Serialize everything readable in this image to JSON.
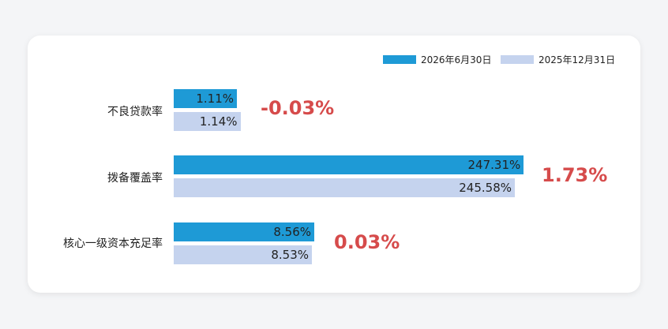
{
  "colors": {
    "series_2026": "#1e9ad6",
    "series_2025": "#c5d3ee",
    "delta": "#d64b4b"
  },
  "chart_data": {
    "type": "bar",
    "orientation": "horizontal",
    "categories": [
      "不良贷款率",
      "拨备覆盖率",
      "核心一级资本充足率"
    ],
    "series": [
      {
        "name": "2026年6月30日",
        "values": [
          1.11,
          247.31,
          8.56
        ],
        "labels": [
          "1.11%",
          "247.31%",
          "8.56%"
        ]
      },
      {
        "name": "2025年12月31日",
        "values": [
          1.14,
          245.58,
          8.53
        ],
        "labels": [
          "1.14%",
          "245.58%",
          "8.53%"
        ]
      }
    ],
    "changes": [
      "-0.03%",
      "1.73%",
      "0.03%"
    ],
    "legend_position": "top-right",
    "grid": false
  }
}
